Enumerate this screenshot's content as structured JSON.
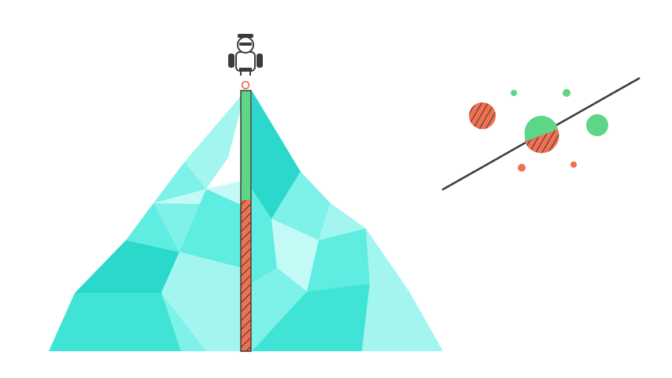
{
  "colors": {
    "background": "#ffffff",
    "mountain_shades": [
      "#2ad9cc",
      "#3fe4d6",
      "#5fece1",
      "#7ef1e8",
      "#a3f6f0",
      "#c4faf6"
    ],
    "meter_fill_green": "#5ed688",
    "meter_fill_orange": "#f07050",
    "outline_dark": "#3b3b3b",
    "marker_red": "#ea5a4c",
    "dot_green": "#5ed688",
    "dot_orange": "#f07050"
  },
  "illustration": {
    "mountain": {
      "style": "low-poly"
    },
    "meter": {
      "green_fraction": 0.42,
      "orange_fraction": 0.58,
      "orange_pattern": "diagonal-hatch"
    },
    "climber": {
      "icon": "hiker-with-sunglasses-icon"
    },
    "scatter": {
      "chart_type": "scatter-with-fit-line",
      "points": [
        {
          "color": "orange",
          "hatched": true,
          "size": "large"
        },
        {
          "color": "green",
          "hatched": false,
          "size": "tiny"
        },
        {
          "color": "green",
          "hatched": false,
          "size": "tiny"
        },
        {
          "color": "green",
          "hatched": false,
          "size": "large"
        },
        {
          "color": "green",
          "hatched": false,
          "size": "medium"
        },
        {
          "color": "orange",
          "hatched": true,
          "size": "large"
        },
        {
          "color": "orange",
          "hatched": false,
          "size": "tiny"
        },
        {
          "color": "orange",
          "hatched": false,
          "size": "tiny"
        }
      ]
    }
  }
}
